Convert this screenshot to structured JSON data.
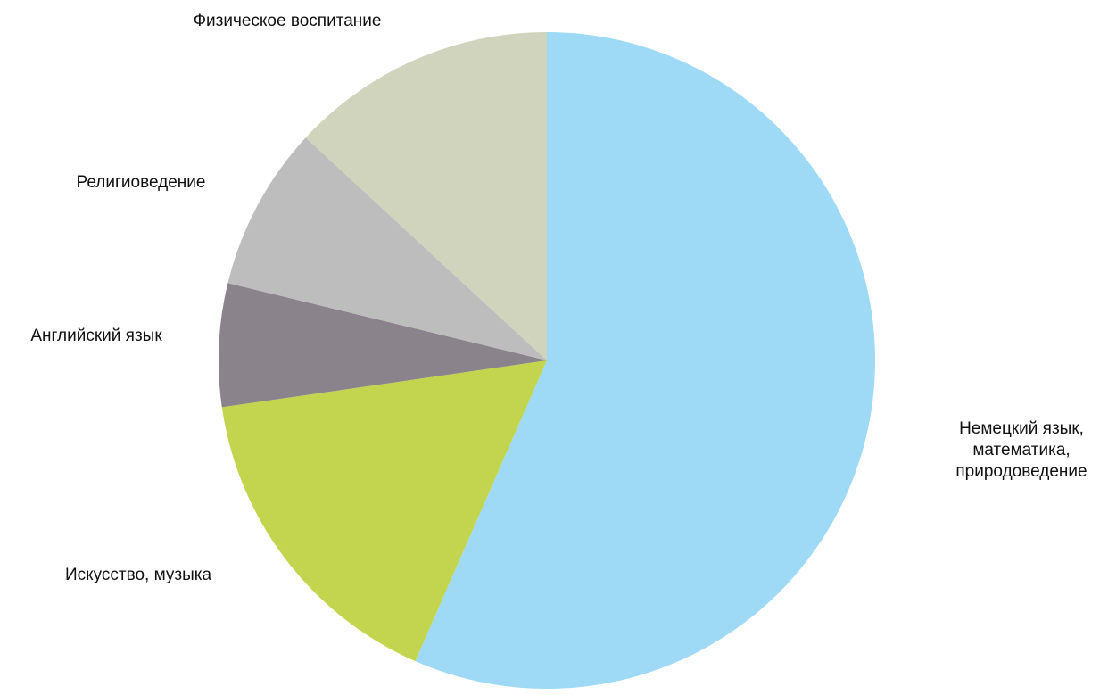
{
  "chart_data": {
    "type": "pie",
    "start": "12 o'clock",
    "direction": "clockwise",
    "slices": [
      {
        "label_lines": [
          "Немецкий язык,",
          "математика,",
          "природоведение"
        ],
        "value": 56,
        "color": "#9ed9f6"
      },
      {
        "label_lines": [
          "Искусство, музыка"
        ],
        "value": 16,
        "color": "#c3d54f"
      },
      {
        "label_lines": [
          "Английский язык"
        ],
        "value": 6,
        "color": "#8a838b"
      },
      {
        "label_lines": [
          "Религиоведение"
        ],
        "value": 8,
        "color": "#bdbdbd"
      },
      {
        "label_lines": [
          "Физическое воспитание"
        ],
        "value": 13,
        "color": "#d1d4bd"
      }
    ]
  }
}
